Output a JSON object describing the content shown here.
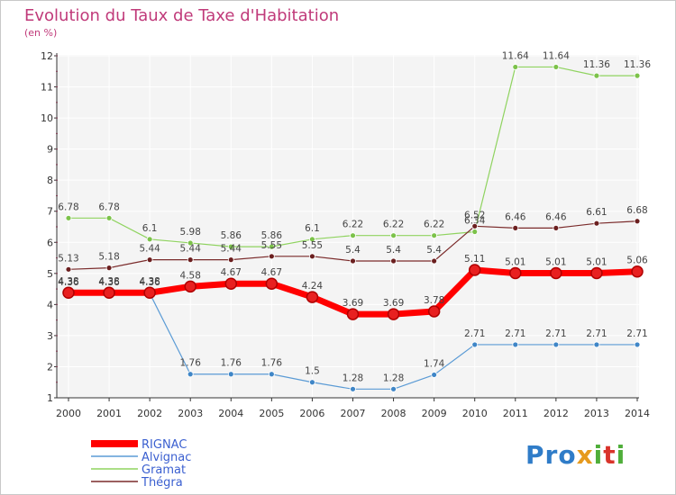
{
  "title": "Evolution du Taux de Taxe d'Habitation",
  "unit": "(en %)",
  "brand": {
    "p1": "Pro",
    "p2": "x",
    "p3": "i",
    "p4": "t",
    "p5": "i"
  },
  "chart_data": {
    "type": "line",
    "title": "Evolution du Taux de Taxe d'Habitation",
    "ylabel": "(en %)",
    "x": [
      "2000",
      "2001",
      "2002",
      "2003",
      "2004",
      "2005",
      "2006",
      "2007",
      "2008",
      "2009",
      "2010",
      "2011",
      "2012",
      "2013",
      "2014"
    ],
    "ylim": [
      1,
      12
    ],
    "yticks": [
      1,
      2,
      3,
      4,
      5,
      6,
      7,
      8,
      9,
      10,
      11,
      12
    ],
    "grid": true,
    "legend": "bottom-left",
    "series": [
      {
        "name": "Gramat",
        "color": "#8fd35f",
        "dot": "#7cc24a",
        "values": [
          6.78,
          6.78,
          6.1,
          5.98,
          5.86,
          5.86,
          6.1,
          6.22,
          6.22,
          6.22,
          6.34,
          11.64,
          11.64,
          11.36,
          11.36
        ],
        "labels": [
          "6.78",
          "6.78",
          "6.1",
          "5.98",
          "5.86",
          "5.86",
          "6.1",
          "6.22",
          "6.22",
          "6.22",
          "6.34",
          "11.64",
          "11.64",
          "11.36",
          "11.36"
        ]
      },
      {
        "name": "Thégra",
        "color": "#7a2a2a",
        "dot": "#6b1f1f",
        "values": [
          5.13,
          5.18,
          5.44,
          5.44,
          5.44,
          5.55,
          5.55,
          5.4,
          5.4,
          5.4,
          6.52,
          6.46,
          6.46,
          6.61,
          6.68
        ],
        "labels": [
          "5.13",
          "5.18",
          "5.44",
          "5.44",
          "5.44",
          "5.55",
          "5.55",
          "5.4",
          "5.4",
          "5.4",
          "6.52",
          "6.46",
          "6.46",
          "6.61",
          "6.68"
        ]
      },
      {
        "name": "Alvignac",
        "color": "#5b9bd5",
        "dot": "#3f86c7",
        "values": [
          4.36,
          4.36,
          4.36,
          1.76,
          1.76,
          1.76,
          1.5,
          1.28,
          1.28,
          1.74,
          2.71,
          2.71,
          2.71,
          2.71,
          2.71
        ],
        "labels": [
          "4.36",
          "4.36",
          "4.36",
          "1.76",
          "1.76",
          "1.76",
          "1.5",
          "1.28",
          "1.28",
          "1.74",
          "2.71",
          "2.71",
          "2.71",
          "2.71",
          "2.71"
        ]
      },
      {
        "name": "RIGNAC",
        "color": "#ff0000",
        "dot": "#e82020",
        "values": [
          4.38,
          4.38,
          4.38,
          4.58,
          4.67,
          4.67,
          4.24,
          3.69,
          3.69,
          3.78,
          5.11,
          5.01,
          5.01,
          5.01,
          5.06
        ],
        "labels": [
          "4.38",
          "4.38",
          "4.38",
          "4.58",
          "4.67",
          "4.67",
          "4.24",
          "3.69",
          "3.69",
          "3.78",
          "5.11",
          "5.01",
          "5.01",
          "5.01",
          "5.06"
        ]
      }
    ],
    "legend_order": [
      "RIGNAC",
      "Alvignac",
      "Gramat",
      "Thégra"
    ]
  }
}
